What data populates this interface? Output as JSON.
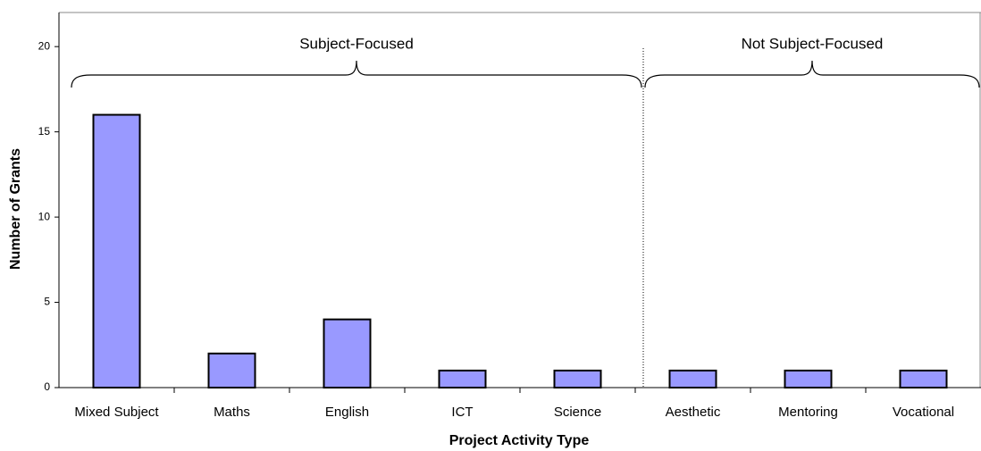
{
  "chart_data": {
    "type": "bar",
    "categories": [
      "Mixed Subject",
      "Maths",
      "English",
      "ICT",
      "Science",
      "Aesthetic",
      "Mentoring",
      "Vocational"
    ],
    "values": [
      16,
      2,
      4,
      1,
      1,
      1,
      1,
      1
    ],
    "color": "#9999ff",
    "ylim": [
      0,
      22
    ],
    "yticks": [
      0,
      5,
      10,
      15,
      20
    ],
    "grid": false,
    "x_label": "Project Activity Type",
    "y_label": "Number of Grants",
    "annotations": [
      "Subject-Focused",
      "Not Subject-Focused"
    ]
  }
}
